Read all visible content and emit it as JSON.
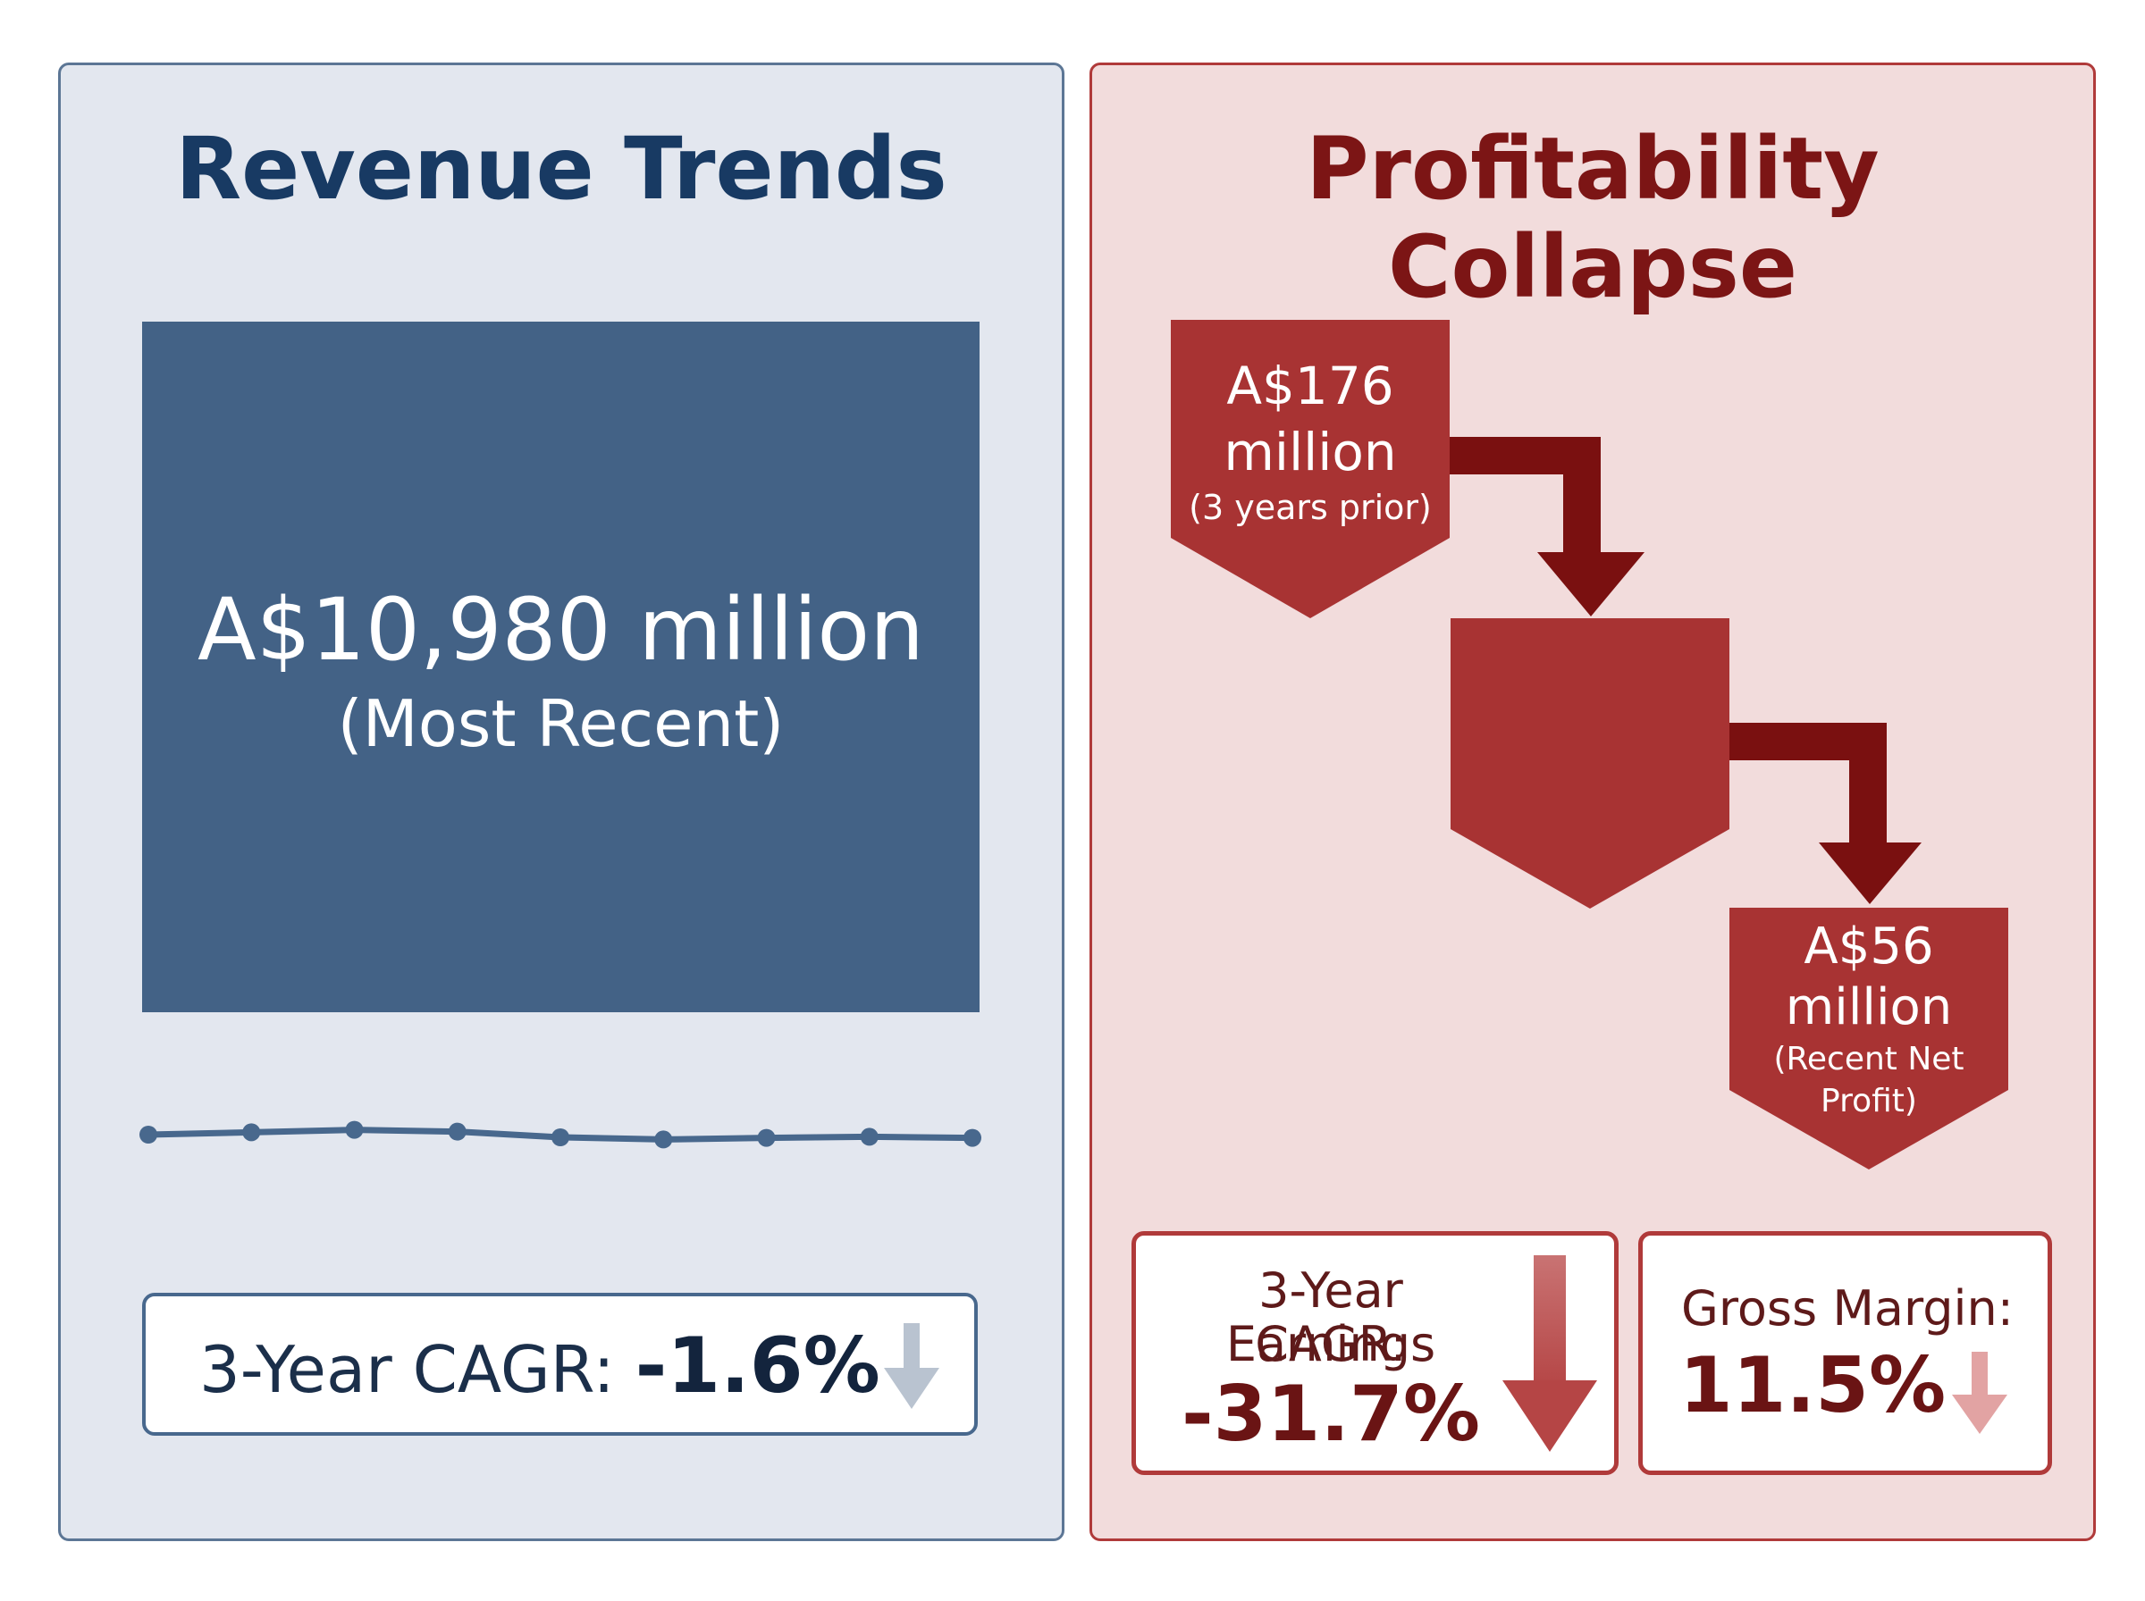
{
  "revenue": {
    "title": "Revenue Trends",
    "value": "A$10,980 million",
    "period": "(Most Recent)",
    "cagr_label": "3-Year CAGR:",
    "cagr_value": "-1.6%",
    "trend_points": [
      0.0,
      0.22,
      0.45,
      0.28,
      -0.25,
      -0.45,
      -0.3,
      -0.2,
      -0.3
    ]
  },
  "profit": {
    "title": "Profitability Collapse",
    "start_value": "A$176",
    "start_unit": "million",
    "start_note": "(3 years prior)",
    "end_value": "A$56",
    "end_unit": "million",
    "end_note_1": "(Recent Net",
    "end_note_2": "Profit)",
    "earnings_label_1": "3-Year Earnings",
    "earnings_label_2": "CAGR:",
    "earnings_value": "-31.7%",
    "margin_label": "Gross Margin:",
    "margin_value": "11.5%"
  },
  "colors": {
    "navy": "#436286",
    "red_block": "#a83333",
    "dark_red_arrow": "#7a1010"
  }
}
